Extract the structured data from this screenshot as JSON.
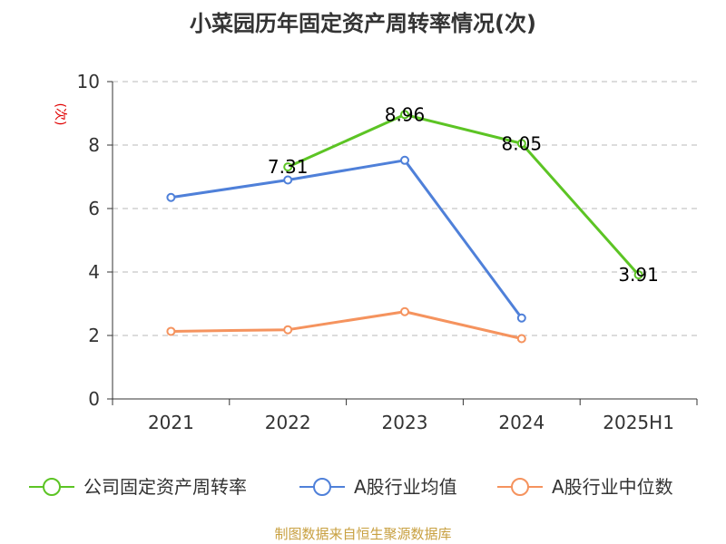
{
  "chart_data": {
    "type": "line",
    "title": "小菜园历年固定资产周转率情况(次)",
    "ylabel": "(次)",
    "xlabel": "",
    "categories": [
      "2021",
      "2022",
      "2023",
      "2024",
      "2025H1"
    ],
    "ylim": [
      0,
      10
    ],
    "yticks": [
      0,
      2,
      4,
      6,
      8,
      10
    ],
    "grid": true,
    "legend_position": "bottom",
    "series": [
      {
        "name": "公司固定资产周转率",
        "color": "#5cc424",
        "values": [
          null,
          7.31,
          8.96,
          8.05,
          3.91
        ],
        "labels": [
          "",
          "7.31",
          "8.96",
          "8.05",
          "3.91"
        ]
      },
      {
        "name": "A股行业均值",
        "color": "#4f80d9",
        "values": [
          6.35,
          6.9,
          7.52,
          2.55,
          null
        ]
      },
      {
        "name": "A股行业中位数",
        "color": "#f5935e",
        "values": [
          2.13,
          2.18,
          2.75,
          1.9,
          null
        ]
      }
    ]
  },
  "source": "制图数据来自恒生聚源数据库"
}
